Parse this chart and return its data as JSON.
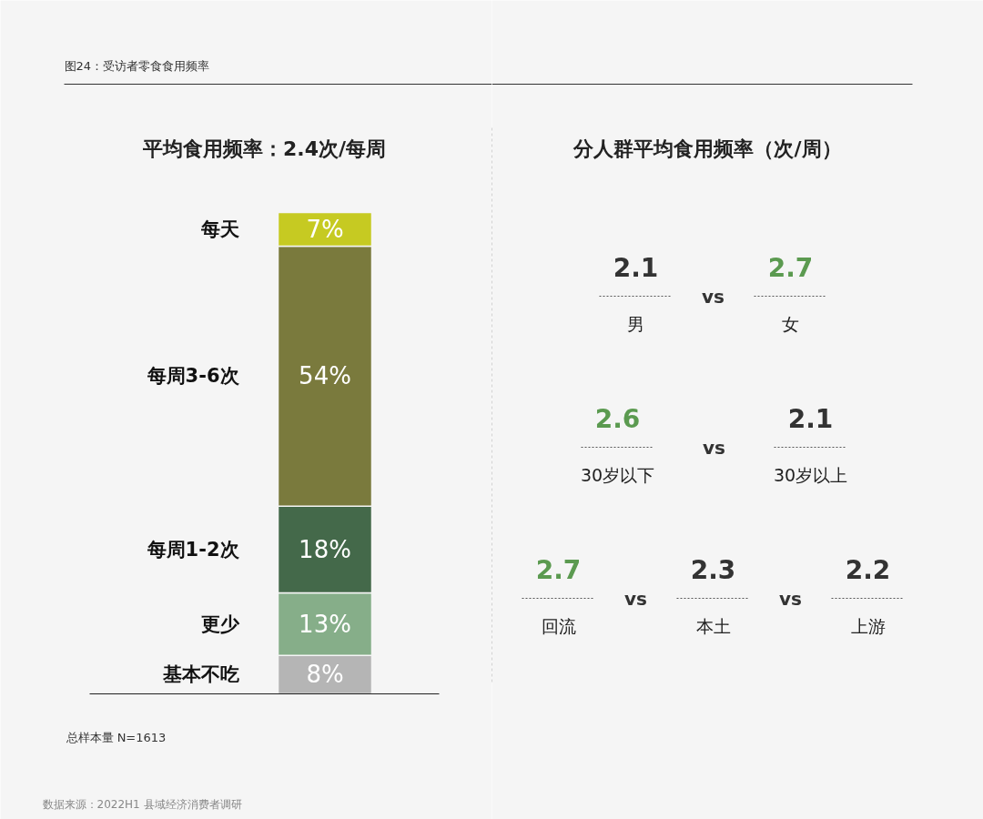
{
  "chart_data": [
    {
      "type": "bar",
      "stacked": true,
      "title": "图24：受访者零食食用频率",
      "subtitle": "平均食用频率：2.4次/每周",
      "categories": [
        null
      ],
      "series": [
        {
          "name": "基本不吃",
          "color": "#b5b5b5",
          "values": [
            8
          ],
          "value_labels": [
            "8%"
          ]
        },
        {
          "name": "更少",
          "color": "#86ae89",
          "values": [
            13
          ],
          "value_labels": [
            "13%"
          ]
        },
        {
          "name": "每周1-2次",
          "color": "#44694a",
          "values": [
            18
          ],
          "value_labels": [
            "18%"
          ]
        },
        {
          "name": "每周3-6次",
          "color": "#7a7a3d",
          "values": [
            54
          ],
          "value_labels": [
            "54%"
          ]
        },
        {
          "name": "每天",
          "color": "#c6ca22",
          "values": [
            7
          ],
          "value_labels": [
            "7%"
          ]
        }
      ],
      "annotations": [
        "总样本量 N=1613",
        "数据来源：2022H1 县域经济消费者调研"
      ]
    },
    {
      "type": "other",
      "title": "分人群平均食用频率（次/周）",
      "categories": [
        "男",
        "女",
        "30岁以下",
        "30岁以上",
        "回流",
        "本土",
        "上游"
      ],
      "values": [
        2.1,
        2.7,
        2.6,
        2.1,
        2.7,
        2.3,
        2.2
      ],
      "colors": [
        "#333333",
        "#5b9a50",
        "#5b9a50",
        "#333333",
        "#5b9a50",
        "#333333",
        "#333333"
      ],
      "data_labels": true,
      "annotations": [
        "vs"
      ]
    }
  ]
}
